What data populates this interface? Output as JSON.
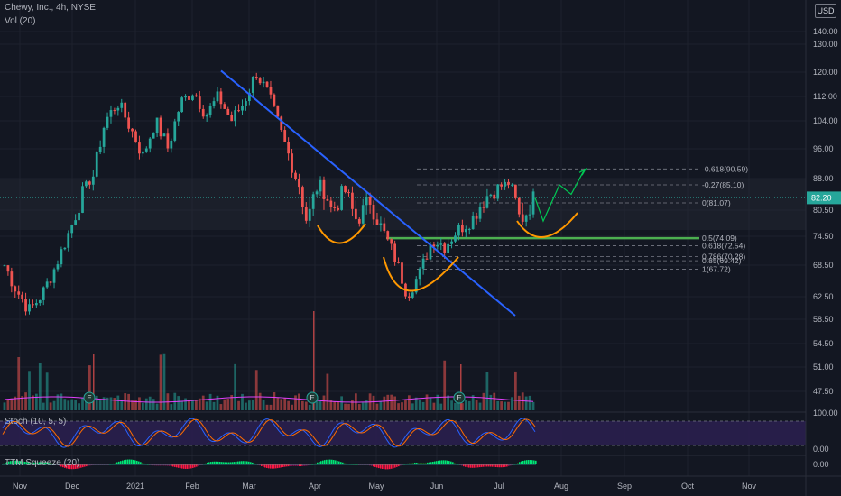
{
  "header": {
    "symbol_line": "Chewy, Inc., 4h, NYSE",
    "volume_label": "Vol (20)",
    "stoch_label": "Stoch (10, 5, 5)",
    "squeeze_label": "TTM Squeeze (20)",
    "currency": "USD"
  },
  "price_axis": {
    "ticks": [
      "140.00",
      "130.00",
      "120.00",
      "112.00",
      "104.00",
      "96.00",
      "88.00",
      "80.50",
      "74.50",
      "68.50",
      "62.50",
      "58.50",
      "54.50",
      "51.00",
      "47.50"
    ],
    "last_price": "82.20"
  },
  "osc_axis": {
    "stoch_ticks": [
      "100.00",
      "0.00"
    ],
    "squeeze_ticks": [
      "0.00"
    ]
  },
  "time_axis": {
    "ticks": [
      "Nov",
      "Dec",
      "2021",
      "Feb",
      "Mar",
      "Apr",
      "May",
      "Jun",
      "Jul",
      "Aug",
      "Sep",
      "Oct",
      "Nov"
    ]
  },
  "fib_levels": [
    {
      "label": "-0.618(90.59)",
      "value": 90.59
    },
    {
      "label": "-0.27(85.10)",
      "value": 85.1
    },
    {
      "label": "0(81.07)",
      "value": 81.07
    },
    {
      "label": "0.5(74.09)",
      "value": 74.09
    },
    {
      "label": "0.618(72.54)",
      "value": 72.54
    },
    {
      "label": "0.786(70.28)",
      "value": 70.28
    },
    {
      "label": "0.85(69.42)",
      "value": 69.42
    },
    {
      "label": "1(67.72)",
      "value": 67.72
    }
  ],
  "earnings_markers": [
    "E",
    "E",
    "E"
  ],
  "colors": {
    "background": "#131722",
    "up": "#26a69a",
    "down": "#ef5350",
    "trendline": "#2962ff",
    "curve": "#ff9800",
    "support": "#4caf50",
    "projection": "#00c853",
    "fib": "#787b86",
    "stoch_k": "#2962ff",
    "stoch_d": "#ff6d00",
    "stoch_band": "#2a1f4e",
    "volume_ma": "#e040fb"
  },
  "chart_data": {
    "type": "candlestick",
    "title": "Chewy, Inc., 4h, NYSE",
    "x_ticks": [
      "Nov",
      "Dec",
      "2021",
      "Feb",
      "Mar",
      "Apr",
      "May",
      "Jun",
      "Jul",
      "Aug",
      "Sep",
      "Oct",
      "Nov"
    ],
    "ylim": [
      45,
      142
    ],
    "last_price": 82.2,
    "price_path": [
      [
        "Nov",
        68.5
      ],
      [
        "Nov",
        63.5
      ],
      [
        "Nov",
        60.0
      ],
      [
        "Dec",
        63.0
      ],
      [
        "Dec",
        68.0
      ],
      [
        "Dec",
        74.5
      ],
      [
        "Dec",
        82.0
      ],
      [
        "Dec",
        88.0
      ],
      [
        "Dec",
        104.0
      ],
      [
        "Dec",
        110.0
      ],
      [
        "Dec",
        102.0
      ],
      [
        "Dec",
        94.0
      ],
      [
        "2021",
        104.0
      ],
      [
        "2021",
        96.0
      ],
      [
        "2021",
        110.0
      ],
      [
        "2021",
        114.0
      ],
      [
        "2021",
        106.0
      ],
      [
        "Feb",
        112.0
      ],
      [
        "Feb",
        104.0
      ],
      [
        "Feb",
        110.0
      ],
      [
        "Feb",
        120.0
      ],
      [
        "Feb",
        112.0
      ],
      [
        "Mar",
        100.0
      ],
      [
        "Mar",
        90.0
      ],
      [
        "Mar",
        78.0
      ],
      [
        "Mar",
        86.0
      ],
      [
        "Mar",
        80.0
      ],
      [
        "Apr",
        84.0
      ],
      [
        "Apr",
        78.0
      ],
      [
        "Apr",
        82.0
      ],
      [
        "Apr",
        76.0
      ],
      [
        "May",
        70.0
      ],
      [
        "May",
        63.0
      ],
      [
        "May",
        67.0
      ],
      [
        "May",
        74.0
      ],
      [
        "Jun",
        72.5
      ],
      [
        "Jun",
        76.0
      ],
      [
        "Jun",
        78.0
      ],
      [
        "Jul",
        82.0
      ],
      [
        "Jul",
        84.0
      ],
      [
        "Jul",
        86.0
      ],
      [
        "Jul",
        78.0
      ],
      [
        "Jul",
        82.2
      ]
    ],
    "projection": [
      82.2,
      78.0,
      85.1,
      83.0,
      90.59
    ],
    "stoch": {
      "ylim": [
        0,
        100
      ],
      "upper": 80,
      "lower": 20
    }
  }
}
